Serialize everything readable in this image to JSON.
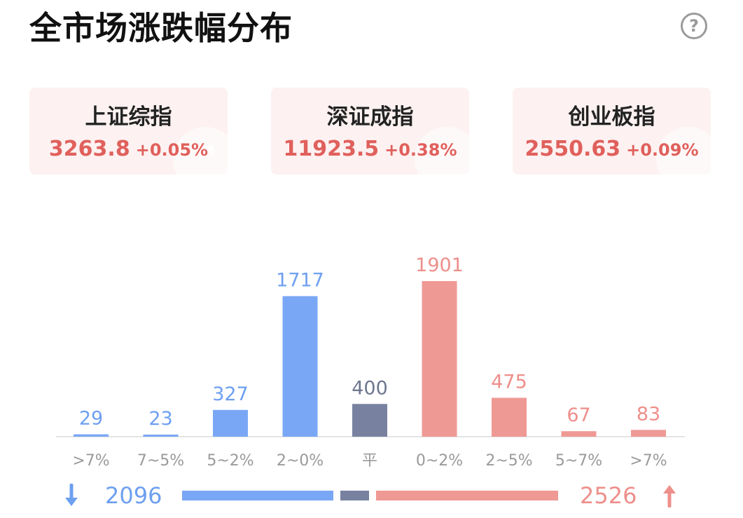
{
  "header": {
    "title": "全市场涨跌幅分布",
    "help_glyph": "?"
  },
  "indices": [
    {
      "name": "上证综指",
      "value": "3263.8",
      "change": "+0.05%"
    },
    {
      "name": "深证成指",
      "value": "11923.5",
      "change": "+0.38%"
    },
    {
      "name": "创业板指",
      "value": "2550.63",
      "change": "+0.09%"
    }
  ],
  "colors": {
    "down": "#7aa7f5",
    "flat": "#7882a0",
    "up": "#ef9994",
    "up_text": "#e0605c"
  },
  "chart_data": {
    "type": "bar",
    "categories": [
      ">7%",
      "7~5%",
      "5~2%",
      "2~0%",
      "平",
      "0~2%",
      "2~5%",
      "5~7%",
      ">7%"
    ],
    "values": [
      29,
      23,
      327,
      1717,
      400,
      1901,
      475,
      67,
      83
    ],
    "groups": [
      "down",
      "down",
      "down",
      "down",
      "flat",
      "up",
      "up",
      "up",
      "up"
    ],
    "title": "",
    "xlabel": "",
    "ylabel": "",
    "ylim": [
      0,
      1901
    ]
  },
  "summary": {
    "down_total": "2096",
    "up_total": "2526",
    "down_icon": "arrow-down-icon",
    "up_icon": "arrow-up-icon"
  }
}
